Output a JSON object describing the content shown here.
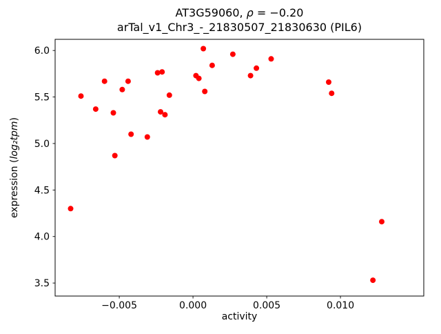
{
  "figure": {
    "title_line1_prefix": "AT3G59060, ",
    "title_line1_math": "ρ",
    "title_line1_suffix": " = −0.20",
    "title_line2": "arTal_v1_Chr3_-_21830507_21830630 (PIL6)",
    "xlabel": "activity",
    "ylabel_prefix": "expression (",
    "ylabel_math": "log₂tpm",
    "ylabel_suffix": ")"
  },
  "chart_data": {
    "type": "scatter",
    "title": "AT3G59060, ρ = −0.20 — arTal_v1_Chr3_-_21830507_21830630 (PIL6)",
    "xlabel": "activity",
    "ylabel": "expression (log2 tpm)",
    "legend": "none",
    "grid": false,
    "marker_color": "#ff0000",
    "spine_color": "#000000",
    "xlim": [
      -0.00935,
      0.01565
    ],
    "ylim": [
      3.36,
      6.12
    ],
    "xticks": [
      -0.005,
      0.0,
      0.005,
      0.01
    ],
    "xtick_labels": [
      "−0.005",
      "0.000",
      "0.005",
      "0.010"
    ],
    "yticks": [
      3.5,
      4.0,
      4.5,
      5.0,
      5.5,
      6.0
    ],
    "ytick_labels": [
      "3.5",
      "4.0",
      "4.5",
      "5.0",
      "5.5",
      "6.0"
    ],
    "points": [
      [
        -0.0083,
        4.3
      ],
      [
        -0.0076,
        5.51
      ],
      [
        -0.0066,
        5.37
      ],
      [
        -0.006,
        5.67
      ],
      [
        -0.0054,
        5.33
      ],
      [
        -0.0053,
        4.87
      ],
      [
        -0.0048,
        5.58
      ],
      [
        -0.0044,
        5.67
      ],
      [
        -0.0042,
        5.1
      ],
      [
        -0.0031,
        5.07
      ],
      [
        -0.0024,
        5.76
      ],
      [
        -0.0021,
        5.77
      ],
      [
        -0.0022,
        5.34
      ],
      [
        -0.0019,
        5.31
      ],
      [
        -0.0016,
        5.52
      ],
      [
        0.0002,
        5.73
      ],
      [
        0.0004,
        5.7
      ],
      [
        0.0007,
        6.02
      ],
      [
        0.0008,
        5.56
      ],
      [
        0.0013,
        5.84
      ],
      [
        0.0027,
        5.96
      ],
      [
        0.0039,
        5.73
      ],
      [
        0.0043,
        5.81
      ],
      [
        0.0053,
        5.91
      ],
      [
        0.0092,
        5.66
      ],
      [
        0.0094,
        5.54
      ],
      [
        0.0122,
        3.53
      ],
      [
        0.0128,
        4.16
      ]
    ]
  }
}
